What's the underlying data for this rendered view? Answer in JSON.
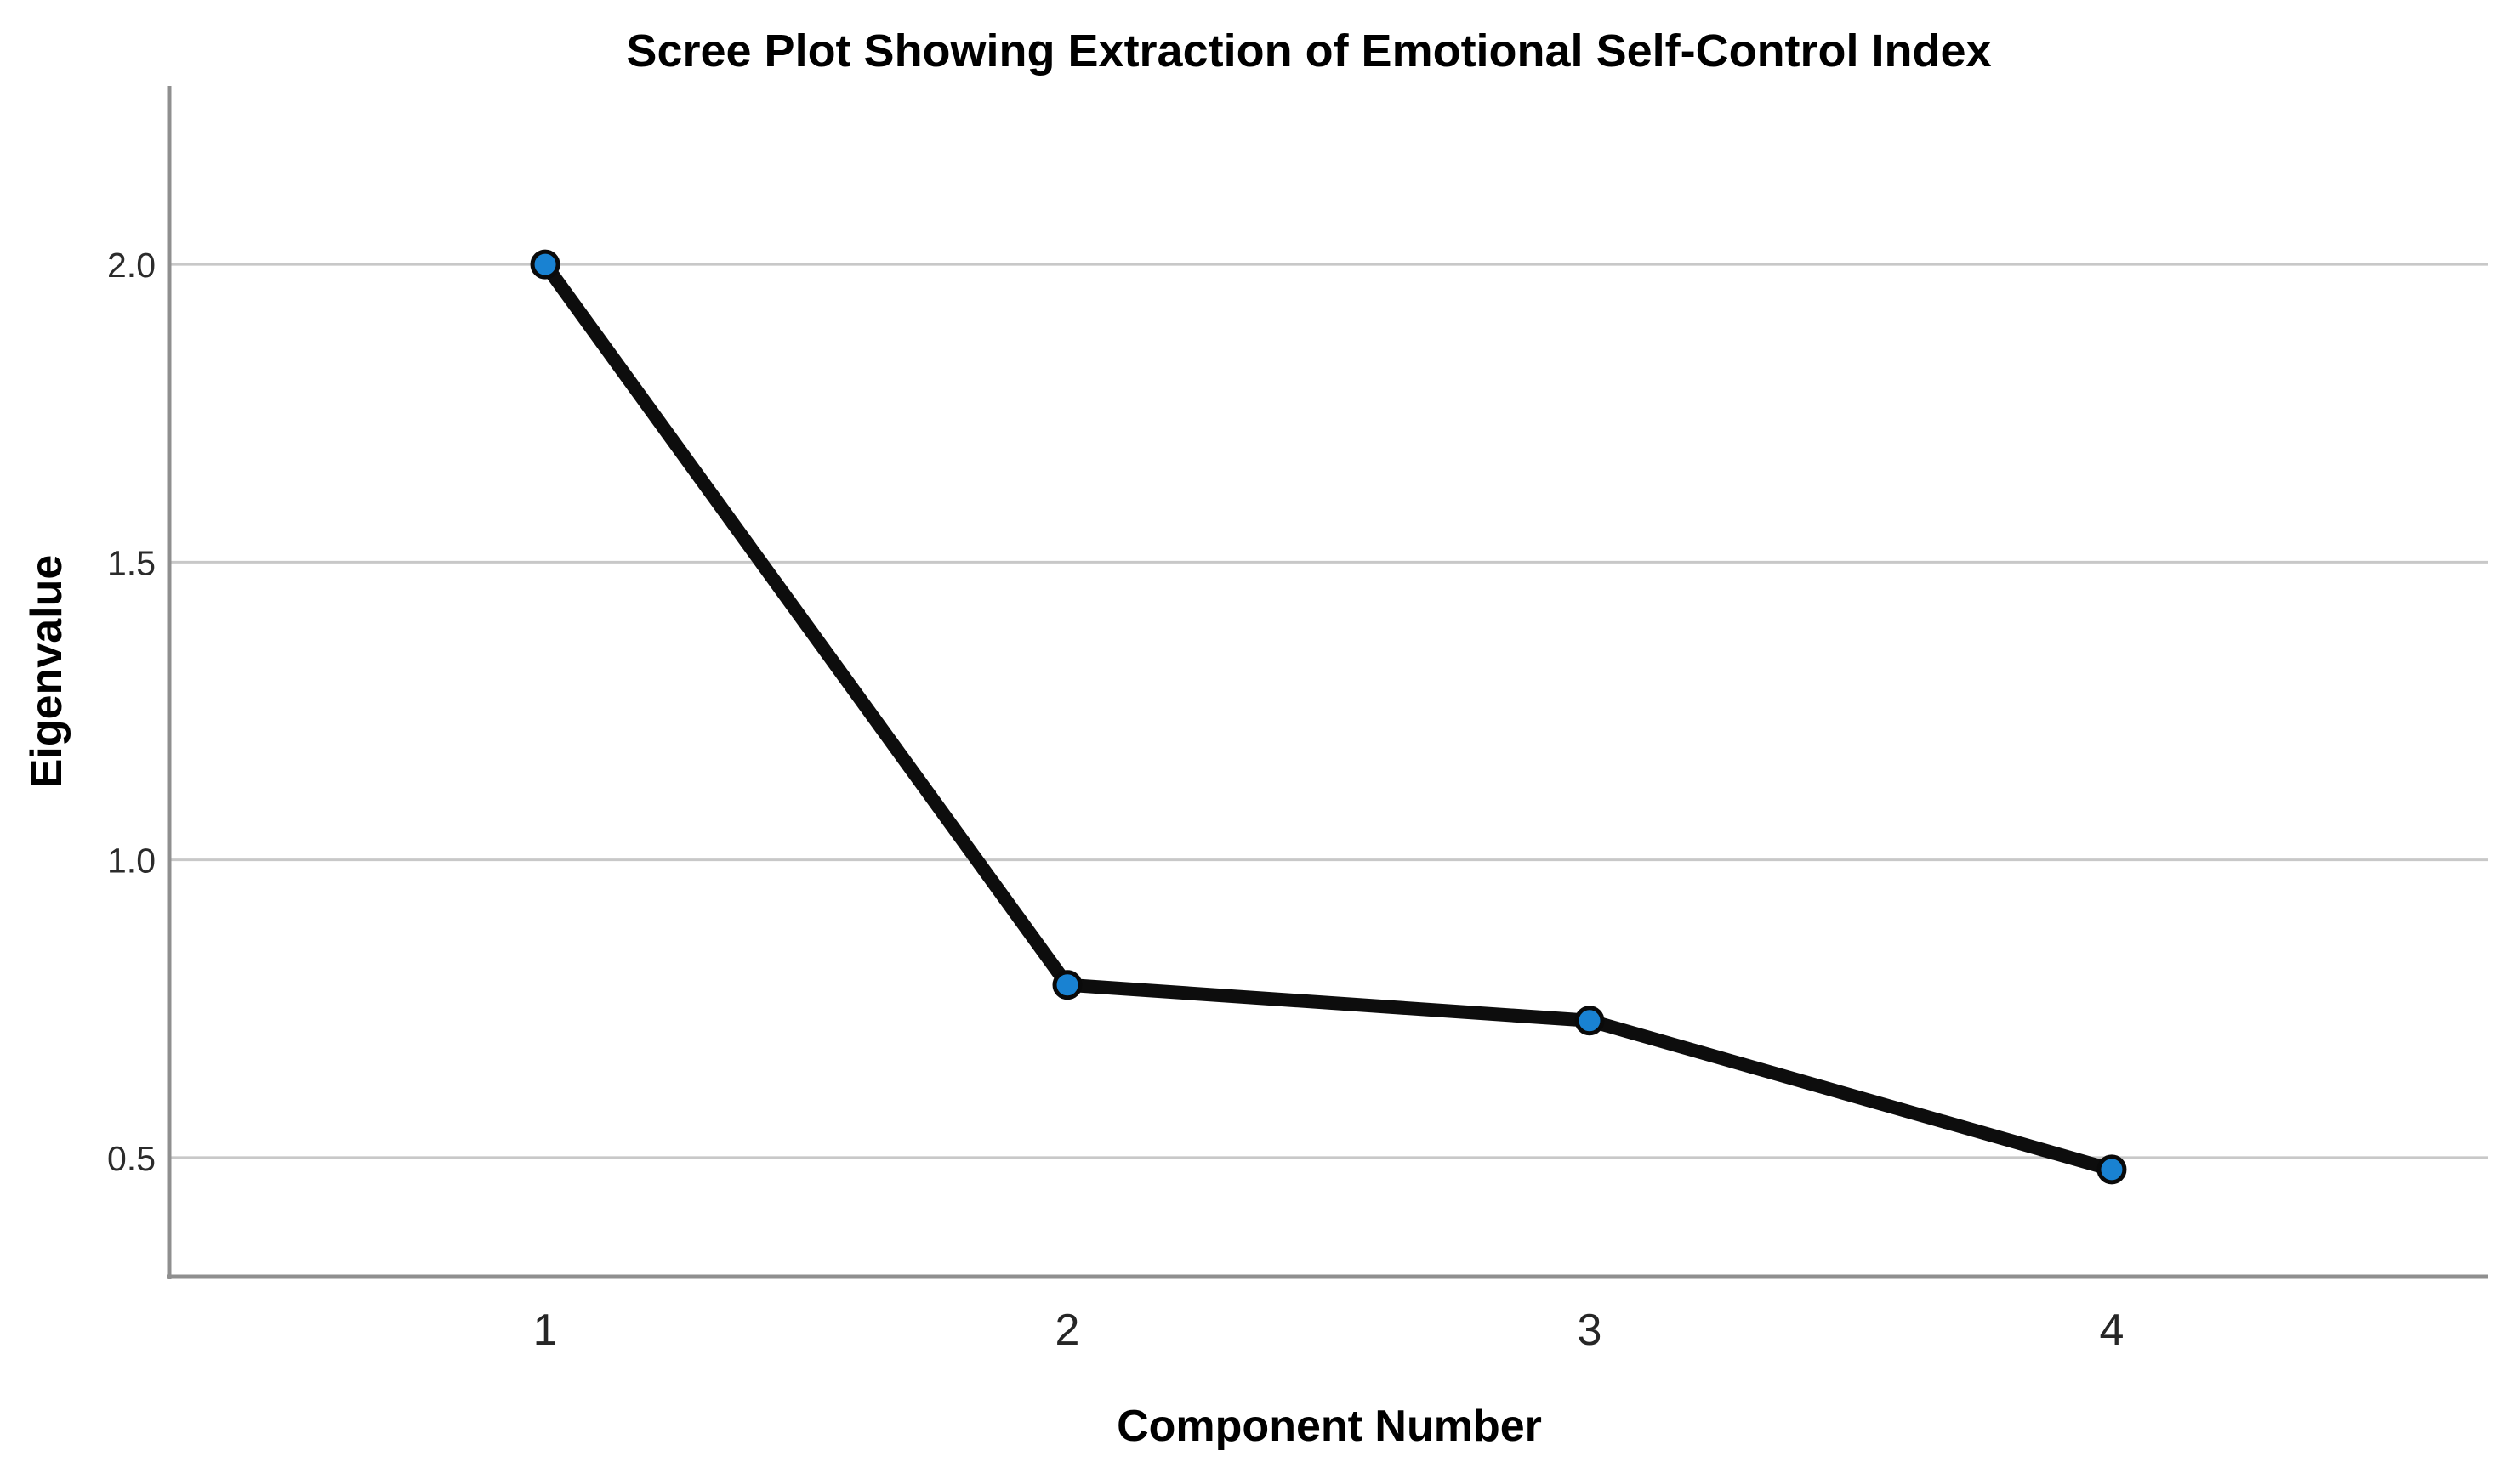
{
  "chart_data": {
    "type": "line",
    "title": "Scree Plot Showing Extraction of Emotional Self-Control Index",
    "xlabel": "Component Number",
    "ylabel": "Eigenvalue",
    "series": [
      {
        "name": "Eigenvalue",
        "x": [
          1,
          2,
          3,
          4
        ],
        "values": [
          2.0,
          0.79,
          0.73,
          0.48
        ]
      }
    ],
    "x_ticks": [
      {
        "value": 1,
        "label": "1"
      },
      {
        "value": 2,
        "label": "2"
      },
      {
        "value": 3,
        "label": "3"
      },
      {
        "value": 4,
        "label": "4"
      }
    ],
    "y_ticks": [
      {
        "value": 0.5,
        "label": "0.5"
      },
      {
        "value": 1.0,
        "label": "1.0"
      },
      {
        "value": 1.5,
        "label": "1.5"
      },
      {
        "value": 2.0,
        "label": "2.0"
      }
    ],
    "xlim": [
      0.28,
      4.72
    ],
    "ylim": [
      0.3,
      2.3
    ],
    "grid": "horizontal-only",
    "legend": "none",
    "colors": {
      "marker_fill": "#1982d2",
      "marker_stroke": "#0a0a0a",
      "line": "#0d0d0d",
      "gridline": "#c8c8c8",
      "axis": "#8f8f8f",
      "tick_text": "#262626",
      "title_text": "#000000",
      "background": "#ffffff"
    }
  }
}
